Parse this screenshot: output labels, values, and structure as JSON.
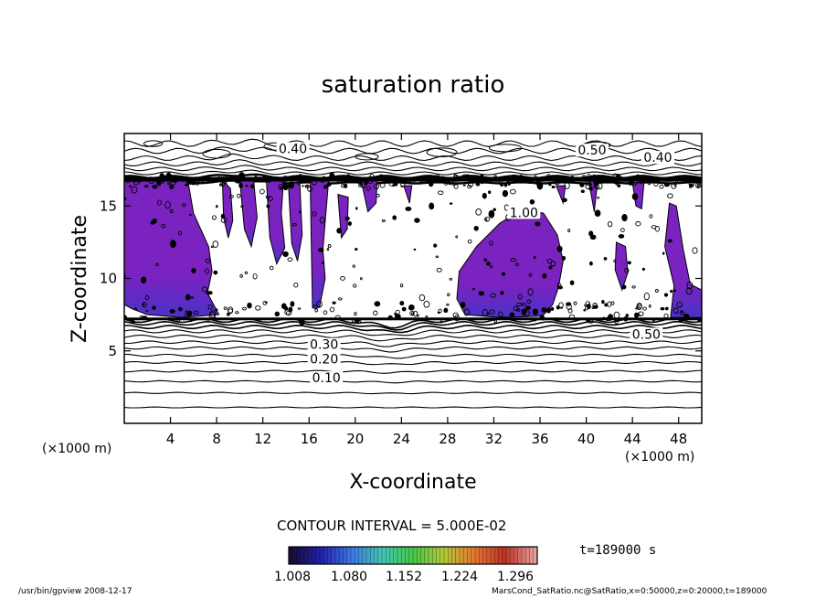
{
  "chart_data": {
    "type": "heatmap",
    "title": "saturation ratio",
    "xlabel": "X-coordinate",
    "ylabel": "Z-coordinate",
    "x_unit": "(×1000 m)",
    "y_unit": "(×1000 m)",
    "xlim": [
      0,
      50
    ],
    "ylim": [
      0,
      20
    ],
    "x_ticks": [
      4,
      8,
      12,
      16,
      20,
      24,
      28,
      32,
      36,
      40,
      44,
      48
    ],
    "y_ticks": [
      5,
      10,
      15
    ],
    "contour_interval_text": "CONTOUR INTERVAL = 5.000E-02",
    "contour_labels": [
      {
        "text": "0.10",
        "x": 17.5,
        "z": 2.9
      },
      {
        "text": "0.20",
        "x": 17.3,
        "z": 4.2
      },
      {
        "text": "0.30",
        "x": 17.3,
        "z": 5.2
      },
      {
        "text": "0.40",
        "x": 14.6,
        "z": 18.7
      },
      {
        "text": "0.50",
        "x": 40.5,
        "z": 18.6
      },
      {
        "text": "0.40",
        "x": 46.2,
        "z": 18.1
      },
      {
        "text": "0.50",
        "x": 45.2,
        "z": 5.9
      },
      {
        "text": "1.00",
        "x": 34.6,
        "z": 14.3
      }
    ],
    "colorbar": {
      "ticks": [
        "1.008",
        "1.080",
        "1.152",
        "1.224",
        "1.296"
      ],
      "range": [
        1.008,
        1.296
      ],
      "colors": [
        "#1a0a3a",
        "#2222a8",
        "#3c78e6",
        "#42c8b4",
        "#46c846",
        "#b4c83c",
        "#e67832",
        "#be3223",
        "#e6a0a0"
      ]
    },
    "time_label": "t=189000 s",
    "fill_color": "#7a23c0",
    "fill_dark": "#4a32c8"
  },
  "footer": {
    "left": "/usr/bin/gpview   2008-12-17",
    "right": "MarsCond_SatRatio.nc@SatRatio,x=0:50000,z=0:20000,t=189000"
  }
}
